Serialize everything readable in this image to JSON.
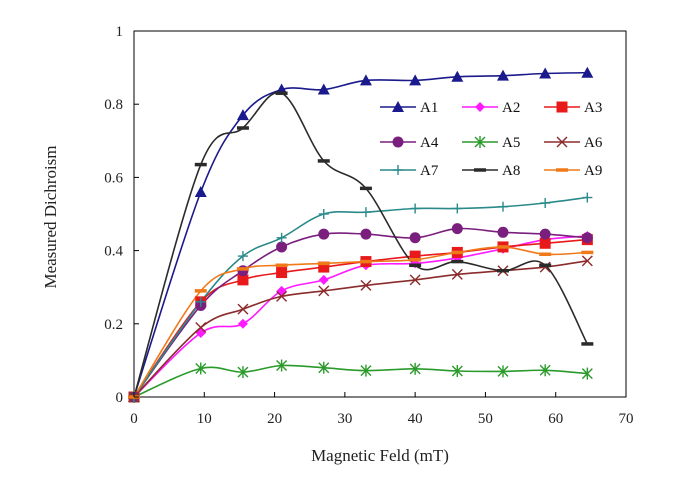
{
  "chart_data": {
    "type": "line",
    "title": "",
    "xlabel": "Magnetic Feld (mT)",
    "ylabel": "Measured Dichroism",
    "xlim": [
      0,
      70
    ],
    "ylim": [
      0,
      1
    ],
    "xticks": [
      0,
      10,
      20,
      30,
      40,
      50,
      60,
      70
    ],
    "yticks": [
      0,
      0.2,
      0.4,
      0.6,
      0.8,
      1
    ],
    "ytick_labels": [
      "0",
      "0.2",
      "0.4",
      "0.6",
      "0.8",
      "1"
    ],
    "grid": false,
    "legend_position": "top-right",
    "series": [
      {
        "name": "A1",
        "color": "#1a1a8c",
        "marker": "triangle",
        "x": [
          0,
          9.5,
          15.5,
          21,
          27,
          33,
          40,
          46,
          52.5,
          58.5,
          64.5
        ],
        "y": [
          0,
          0.56,
          0.77,
          0.84,
          0.84,
          0.865,
          0.865,
          0.875,
          0.878,
          0.884,
          0.886
        ]
      },
      {
        "name": "A2",
        "color": "#ff1aff",
        "marker": "diamond",
        "x": [
          0,
          9.5,
          15.5,
          21,
          27,
          33,
          40,
          46,
          52.5,
          58.5,
          64.5
        ],
        "y": [
          0,
          0.175,
          0.2,
          0.29,
          0.32,
          0.36,
          0.365,
          0.38,
          0.405,
          0.43,
          0.44
        ]
      },
      {
        "name": "A3",
        "color": "#e8191b",
        "marker": "square",
        "x": [
          0,
          9.5,
          15.5,
          21,
          27,
          33,
          40,
          46,
          52.5,
          58.5,
          64.5
        ],
        "y": [
          0,
          0.26,
          0.32,
          0.34,
          0.355,
          0.37,
          0.385,
          0.395,
          0.41,
          0.42,
          0.43
        ]
      },
      {
        "name": "A4",
        "color": "#7a1f7e",
        "marker": "circle",
        "x": [
          0,
          9.5,
          15.5,
          21,
          27,
          33,
          40,
          46,
          52.5,
          58.5,
          64.5
        ],
        "y": [
          0,
          0.25,
          0.345,
          0.41,
          0.445,
          0.445,
          0.435,
          0.46,
          0.45,
          0.445,
          0.435
        ]
      },
      {
        "name": "A5",
        "color": "#2a9a2a",
        "marker": "asterisk",
        "x": [
          0,
          9.5,
          15.5,
          21,
          27,
          33,
          40,
          46,
          52.5,
          58.5,
          64.5
        ],
        "y": [
          0,
          0.078,
          0.068,
          0.086,
          0.08,
          0.072,
          0.077,
          0.071,
          0.07,
          0.073,
          0.064
        ]
      },
      {
        "name": "A6",
        "color": "#8b2b2b",
        "marker": "x",
        "x": [
          0,
          9.5,
          15.5,
          21,
          27,
          33,
          40,
          46,
          52.5,
          58.5,
          64.5
        ],
        "y": [
          0,
          0.19,
          0.24,
          0.275,
          0.29,
          0.305,
          0.32,
          0.335,
          0.345,
          0.355,
          0.372
        ]
      },
      {
        "name": "A7",
        "color": "#2a8a8a",
        "marker": "plus",
        "x": [
          0,
          9.5,
          15.5,
          21,
          27,
          33,
          40,
          46,
          52.5,
          58.5,
          64.5
        ],
        "y": [
          0,
          0.26,
          0.385,
          0.435,
          0.5,
          0.505,
          0.515,
          0.515,
          0.52,
          0.53,
          0.545
        ]
      },
      {
        "name": "A8",
        "color": "#2b2b2b",
        "marker": "dash",
        "x": [
          0,
          9.5,
          15.5,
          21,
          27,
          33,
          40,
          46,
          52.5,
          58.5,
          64.5
        ],
        "y": [
          0,
          0.635,
          0.735,
          0.83,
          0.645,
          0.57,
          0.36,
          0.37,
          0.345,
          0.36,
          0.145
        ]
      },
      {
        "name": "A9",
        "color": "#f07a1a",
        "marker": "dash",
        "x": [
          0,
          9.5,
          15.5,
          21,
          27,
          33,
          40,
          46,
          52.5,
          58.5,
          64.5
        ],
        "y": [
          0,
          0.29,
          0.35,
          0.36,
          0.365,
          0.37,
          0.375,
          0.395,
          0.41,
          0.39,
          0.395
        ]
      }
    ]
  }
}
